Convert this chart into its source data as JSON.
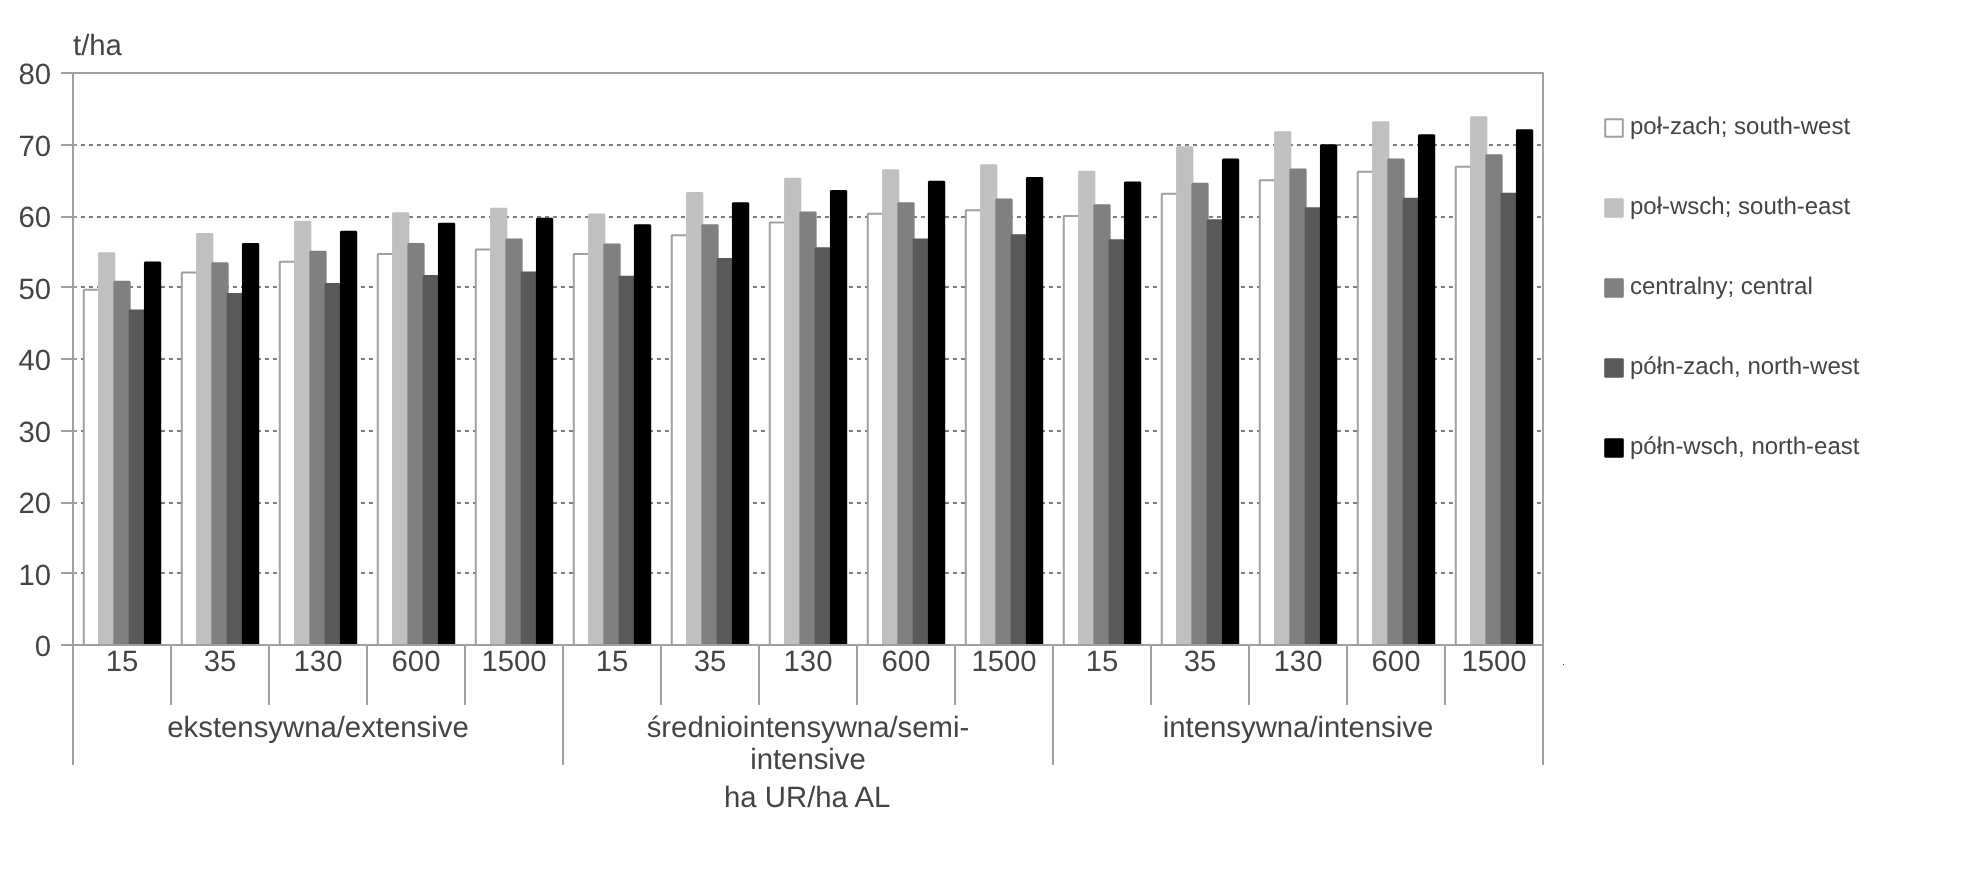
{
  "chart_data": {
    "type": "bar",
    "ylabel": "t/ha",
    "xlabel": "ha UR/ha AL",
    "categories": [
      "15",
      "35",
      "130",
      "600",
      "1500",
      "15",
      "35",
      "130",
      "600",
      "1500",
      "15",
      "35",
      "130",
      "600",
      "1500"
    ],
    "annotations": [
      "ekstensywna/extensive",
      "średniointensywna/semi-intensive",
      "intensywna/intensive"
    ],
    "series": [
      {
        "name": "poł-zach; south-west",
        "color": "#ffffff",
        "values": [
          49.7,
          52.1,
          53.6,
          54.7,
          55.3,
          54.7,
          57.3,
          59.1,
          60.3,
          60.8,
          60.0,
          63.1,
          65.0,
          66.2,
          66.9
        ]
      },
      {
        "name": "poł-wsch; south-east",
        "color": "#c0c0c0",
        "values": [
          54.8,
          57.5,
          59.2,
          60.4,
          61.0,
          60.2,
          63.2,
          65.2,
          66.4,
          67.1,
          66.2,
          69.6,
          71.7,
          73.1,
          73.8
        ]
      },
      {
        "name": "centralny; central",
        "color": "#808080",
        "values": [
          50.8,
          53.4,
          55.0,
          56.1,
          56.7,
          56.0,
          58.7,
          60.5,
          61.8,
          62.3,
          61.5,
          64.5,
          66.5,
          67.9,
          68.5
        ]
      },
      {
        "name": "półn-zach, north-west",
        "color": "#595959",
        "values": [
          46.8,
          49.1,
          50.5,
          51.6,
          52.1,
          51.5,
          54.0,
          55.5,
          56.7,
          57.3,
          56.6,
          59.4,
          61.1,
          62.4,
          63.1
        ]
      },
      {
        "name": "półn-wsch, north-east",
        "color": "#000000",
        "values": [
          53.5,
          56.1,
          57.8,
          58.9,
          59.6,
          58.7,
          61.8,
          63.5,
          64.8,
          65.3,
          64.7,
          67.9,
          69.9,
          71.3,
          72.0
        ]
      }
    ],
    "ylim": [
      0,
      80
    ],
    "yticks": [
      0,
      10,
      20,
      30,
      40,
      50,
      60,
      70,
      80
    ],
    "grid": "y",
    "legend": "right"
  }
}
